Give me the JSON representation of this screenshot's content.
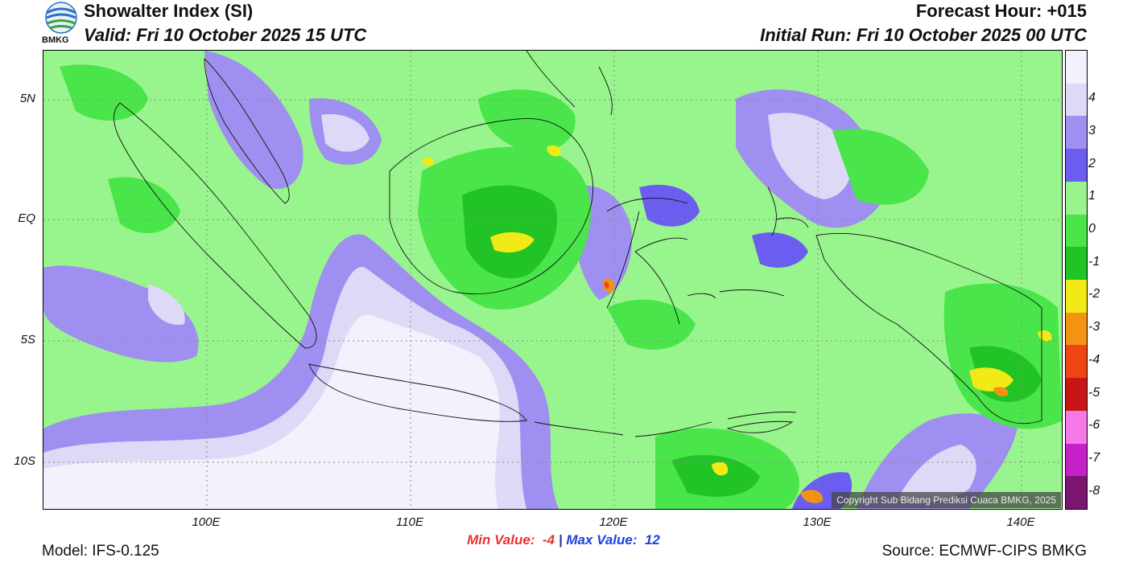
{
  "header": {
    "title": "Showalter Index (SI)",
    "valid": "Valid: Fri 10 October 2025 15 UTC",
    "forecast_hour": "Forecast Hour: +015",
    "initial_run": "Initial Run: Fri 10 October 2025 00 UTC"
  },
  "logo": {
    "text": "BMKG"
  },
  "map": {
    "lat_labels": [
      {
        "text": "5N",
        "lat": 5
      },
      {
        "text": "EQ",
        "lat": 0
      },
      {
        "text": "5S",
        "lat": -5
      },
      {
        "text": "10S",
        "lat": -10
      }
    ],
    "lon_labels": [
      {
        "text": "100E",
        "lon": 100
      },
      {
        "text": "110E",
        "lon": 110
      },
      {
        "text": "120E",
        "lon": 120
      },
      {
        "text": "130E",
        "lon": 130
      },
      {
        "text": "140E",
        "lon": 140
      }
    ],
    "copyright": "Copyright Sub Bidang Prediksi Cuaca BMKG, 2025"
  },
  "colorbar": {
    "levels": [
      {
        "label": "",
        "color": "#f2f1fc"
      },
      {
        "label": "4",
        "color": "#dcdaf7"
      },
      {
        "label": "3",
        "color": "#9f8ff0"
      },
      {
        "label": "2",
        "color": "#6a5df0"
      },
      {
        "label": "1",
        "color": "#98f58d"
      },
      {
        "label": "0",
        "color": "#4ae54a"
      },
      {
        "label": "-1",
        "color": "#22c326"
      },
      {
        "label": "-2",
        "color": "#f2ea16"
      },
      {
        "label": "-3",
        "color": "#f39314"
      },
      {
        "label": "-4",
        "color": "#f04515"
      },
      {
        "label": "-5",
        "color": "#c81616"
      },
      {
        "label": "-6",
        "color": "#f57ae8"
      },
      {
        "label": "-7",
        "color": "#c521c8"
      },
      {
        "label": "-8",
        "color": "#7a1670"
      }
    ]
  },
  "stats": {
    "min_label": "Min Value:",
    "min_value": "-4",
    "separator": "|",
    "max_label": "Max Value:",
    "max_value": "12"
  },
  "footer": {
    "model": "Model: IFS-0.125",
    "source": "Source: ECMWF-CIPS BMKG"
  },
  "colors": {
    "min_text": "#e83232",
    "max_text": "#2040e0"
  }
}
